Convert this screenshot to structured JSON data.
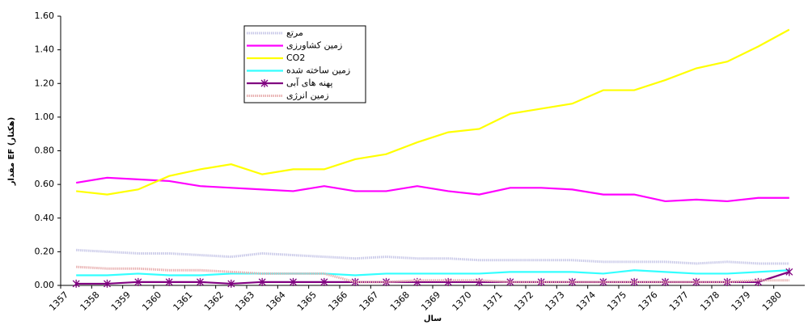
{
  "chart_data": {
    "type": "line",
    "x_label": "سال",
    "y_label": "مقدار EF (هکتار)",
    "categories": [
      "1357",
      "1358",
      "1359",
      "1360",
      "1361",
      "1362",
      "1363",
      "1364",
      "1365",
      "1366",
      "1367",
      "1368",
      "1369",
      "1370",
      "1371",
      "1372",
      "1373",
      "1374",
      "1375",
      "1376",
      "1377",
      "1378",
      "1379",
      "1380"
    ],
    "ylim": [
      0,
      1.6
    ],
    "yticks": [
      {
        "value": 0,
        "label": "0.00"
      },
      {
        "value": 0.2,
        "label": "0.20"
      },
      {
        "value": 0.4,
        "label": "0.40"
      },
      {
        "value": 0.6,
        "label": "0.60"
      },
      {
        "value": 0.8,
        "label": "0.80"
      },
      {
        "value": 1,
        "label": "1.00"
      },
      {
        "value": 1.2,
        "label": "1.20"
      },
      {
        "value": 1.4,
        "label": "1.40"
      },
      {
        "value": 1.6,
        "label": "1.60"
      }
    ],
    "grid": false,
    "legend": "upper-left",
    "series": [
      {
        "name": "مرتع",
        "color": "#c8c8e8",
        "dash": "dotted",
        "values": [
          0.21,
          0.2,
          0.19,
          0.19,
          0.18,
          0.17,
          0.19,
          0.18,
          0.17,
          0.16,
          0.17,
          0.16,
          0.16,
          0.15,
          0.15,
          0.15,
          0.15,
          0.14,
          0.14,
          0.14,
          0.13,
          0.14,
          0.13,
          0.13
        ]
      },
      {
        "name": "زمین کشاورزی",
        "color": "#ff00ff",
        "values": [
          0.61,
          0.64,
          0.63,
          0.62,
          0.59,
          0.58,
          0.57,
          0.56,
          0.59,
          0.56,
          0.56,
          0.59,
          0.56,
          0.54,
          0.58,
          0.58,
          0.57,
          0.54,
          0.54,
          0.5,
          0.51,
          0.5,
          0.52,
          0.52
        ]
      },
      {
        "name": "CO2",
        "color": "#ffff00",
        "values": [
          0.56,
          0.54,
          0.57,
          0.65,
          0.69,
          0.72,
          0.66,
          0.69,
          0.69,
          0.75,
          0.78,
          0.85,
          0.91,
          0.93,
          1.02,
          1.05,
          1.08,
          1.16,
          1.16,
          1.22,
          1.29,
          1.33,
          1.42,
          1.52
        ]
      },
      {
        "name": "زمین ساخته شده",
        "color": "#33ffff",
        "values": [
          0.06,
          0.06,
          0.07,
          0.06,
          0.06,
          0.07,
          0.07,
          0.07,
          0.07,
          0.06,
          0.07,
          0.07,
          0.07,
          0.07,
          0.08,
          0.08,
          0.08,
          0.07,
          0.09,
          0.08,
          0.07,
          0.07,
          0.08,
          0.09
        ]
      },
      {
        "name": "پهنه های آبی",
        "color": "#800080",
        "marker": "star",
        "values": [
          0.01,
          0.01,
          0.02,
          0.02,
          0.02,
          0.01,
          0.02,
          0.02,
          0.02,
          0.02,
          0.02,
          0.02,
          0.02,
          0.02,
          0.02,
          0.02,
          0.02,
          0.02,
          0.02,
          0.02,
          0.02,
          0.02,
          0.02,
          0.08
        ]
      },
      {
        "name": "زمین انرژی",
        "color": "#e8b0b0",
        "dash": "dotted",
        "values": [
          0.11,
          0.1,
          0.1,
          0.09,
          0.09,
          0.08,
          0.07,
          0.07,
          0.07,
          0.02,
          0.02,
          0.03,
          0.03,
          0.03,
          0.02,
          0.02,
          0.02,
          0.02,
          0.02,
          0.02,
          0.02,
          0.02,
          0.03,
          0.03
        ]
      }
    ]
  }
}
